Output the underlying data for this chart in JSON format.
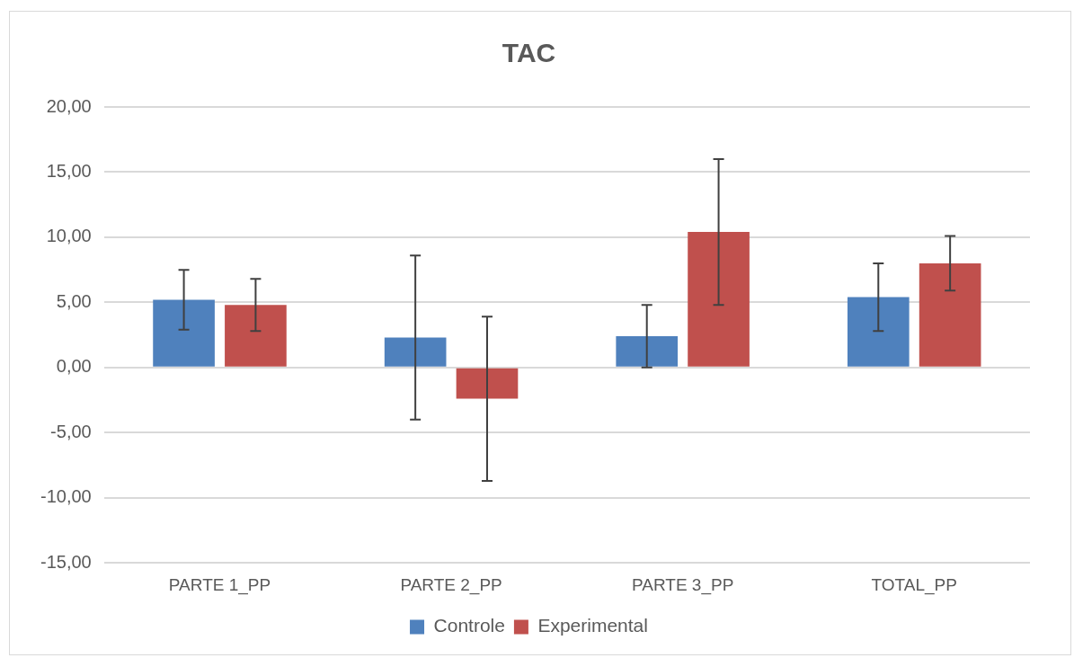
{
  "chart_data": {
    "type": "bar",
    "title": "TAC",
    "categories": [
      "PARTE 1_PP",
      "PARTE 2_PP",
      "PARTE 3_PP",
      "TOTAL_PP"
    ],
    "series": [
      {
        "name": "Controle",
        "color": "#4f81bd",
        "values": [
          5.2,
          2.3,
          2.4,
          5.4
        ],
        "errors": [
          2.3,
          6.3,
          2.4,
          2.6
        ]
      },
      {
        "name": "Experimental",
        "color": "#c0504d",
        "values": [
          4.8,
          -2.4,
          10.4,
          8.0
        ],
        "errors": [
          2.0,
          6.3,
          5.6,
          2.1
        ]
      }
    ],
    "ylim": [
      -15,
      20
    ],
    "yticks": [
      {
        "value": -15,
        "label": "-15,00"
      },
      {
        "value": -10,
        "label": "-10,00"
      },
      {
        "value": -5,
        "label": "-5,00"
      },
      {
        "value": 0,
        "label": "0,00"
      },
      {
        "value": 5,
        "label": "5,00"
      },
      {
        "value": 10,
        "label": "10,00"
      },
      {
        "value": 15,
        "label": "15,00"
      },
      {
        "value": 20,
        "label": "20,00"
      }
    ],
    "grid": "y",
    "legend": "bottom"
  }
}
